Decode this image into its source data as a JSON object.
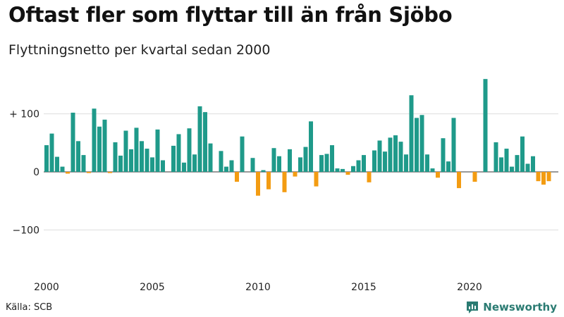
{
  "header": {
    "title": "Oftast fler som flyttar till än från Sjöbo",
    "subtitle": "Flyttningsnetto per kvartal sedan 2000"
  },
  "footer": {
    "source": "Källa: SCB",
    "brand": "Newsworthy",
    "brand_icon": "newsworthy-logo-icon"
  },
  "colors": {
    "positive": "#1f9a8a",
    "negative": "#f39c12",
    "grid": "#dddddd",
    "brand": "#2a7b72"
  },
  "chart_data": {
    "type": "bar",
    "title": "Oftast fler som flyttar till än från Sjöbo",
    "subtitle": "Flyttningsnetto per kvartal sedan 2000",
    "xlabel": "",
    "ylabel": "",
    "ylim": [
      -150,
      150
    ],
    "xlim": [
      2000,
      2023.75
    ],
    "yticks": [
      100,
      0,
      -100
    ],
    "ytick_labels": [
      "+ 100",
      "0",
      "−100"
    ],
    "xticks": [
      2000,
      2005,
      2010,
      2015,
      2020
    ],
    "xtick_labels": [
      "2000",
      "2005",
      "2010",
      "2015",
      "2020"
    ],
    "grid": true,
    "legend": "none",
    "categories": [
      "2000 K1",
      "2000 K2",
      "2000 K3",
      "2000 K4",
      "2001 K1",
      "2001 K2",
      "2001 K3",
      "2001 K4",
      "2002 K1",
      "2002 K2",
      "2002 K3",
      "2002 K4",
      "2003 K1",
      "2003 K2",
      "2003 K3",
      "2003 K4",
      "2004 K1",
      "2004 K2",
      "2004 K3",
      "2004 K4",
      "2005 K1",
      "2005 K2",
      "2005 K3",
      "2005 K4",
      "2006 K1",
      "2006 K2",
      "2006 K3",
      "2006 K4",
      "2007 K1",
      "2007 K2",
      "2007 K3",
      "2007 K4",
      "2008 K1",
      "2008 K2",
      "2008 K3",
      "2008 K4",
      "2009 K1",
      "2009 K2",
      "2009 K3",
      "2009 K4",
      "2010 K1",
      "2010 K2",
      "2010 K3",
      "2010 K4",
      "2011 K1",
      "2011 K2",
      "2011 K3",
      "2011 K4",
      "2012 K1",
      "2012 K2",
      "2012 K3",
      "2012 K4",
      "2013 K1",
      "2013 K2",
      "2013 K3",
      "2013 K4",
      "2014 K1",
      "2014 K2",
      "2014 K3",
      "2014 K4",
      "2015 K1",
      "2015 K2",
      "2015 K3",
      "2015 K4",
      "2016 K1",
      "2016 K2",
      "2016 K3",
      "2016 K4",
      "2017 K1",
      "2017 K2",
      "2017 K3",
      "2017 K4",
      "2018 K1",
      "2018 K2",
      "2018 K3",
      "2018 K4",
      "2019 K1",
      "2019 K2",
      "2019 K3",
      "2019 K4",
      "2020 K1",
      "2020 K2",
      "2020 K3",
      "2020 K4",
      "2021 K1",
      "2021 K2",
      "2021 K3",
      "2021 K4",
      "2022 K1",
      "2022 K2",
      "2022 K3",
      "2022 K4",
      "2023 K1",
      "2023 K2",
      "2023 K3",
      "2023 K4"
    ],
    "x": [
      2000.0,
      2000.25,
      2000.5,
      2000.75,
      2001.0,
      2001.25,
      2001.5,
      2001.75,
      2002.0,
      2002.25,
      2002.5,
      2002.75,
      2003.0,
      2003.25,
      2003.5,
      2003.75,
      2004.0,
      2004.25,
      2004.5,
      2004.75,
      2005.0,
      2005.25,
      2005.5,
      2005.75,
      2006.0,
      2006.25,
      2006.5,
      2006.75,
      2007.0,
      2007.25,
      2007.5,
      2007.75,
      2008.0,
      2008.25,
      2008.5,
      2008.75,
      2009.0,
      2009.25,
      2009.5,
      2009.75,
      2010.0,
      2010.25,
      2010.5,
      2010.75,
      2011.0,
      2011.25,
      2011.5,
      2011.75,
      2012.0,
      2012.25,
      2012.5,
      2012.75,
      2013.0,
      2013.25,
      2013.5,
      2013.75,
      2014.0,
      2014.25,
      2014.5,
      2014.75,
      2015.0,
      2015.25,
      2015.5,
      2015.75,
      2016.0,
      2016.25,
      2016.5,
      2016.75,
      2017.0,
      2017.25,
      2017.5,
      2017.75,
      2018.0,
      2018.25,
      2018.5,
      2018.75,
      2019.0,
      2019.25,
      2019.5,
      2019.75,
      2020.0,
      2020.25,
      2020.5,
      2020.75,
      2021.0,
      2021.25,
      2021.5,
      2021.75,
      2022.0,
      2022.25,
      2022.5,
      2022.75,
      2023.0,
      2023.25,
      2023.5,
      2023.75
    ],
    "values": [
      46,
      66,
      26,
      9,
      -3,
      102,
      53,
      29,
      -2,
      109,
      78,
      90,
      -2,
      51,
      28,
      71,
      39,
      76,
      53,
      40,
      25,
      73,
      20,
      0,
      45,
      65,
      16,
      75,
      30,
      113,
      103,
      49,
      0,
      36,
      9,
      20,
      -17,
      61,
      0,
      24,
      -41,
      3,
      -30,
      41,
      27,
      -35,
      39,
      -8,
      25,
      43,
      87,
      -25,
      29,
      31,
      46,
      6,
      5,
      -5,
      10,
      20,
      29,
      -18,
      37,
      54,
      35,
      59,
      63,
      52,
      30,
      132,
      93,
      98,
      30,
      6,
      -10,
      58,
      18,
      93,
      -28,
      0,
      0,
      -17,
      0,
      160,
      0,
      51,
      25,
      40,
      9,
      29,
      61,
      14,
      27,
      -16,
      -22,
      -16
    ]
  }
}
